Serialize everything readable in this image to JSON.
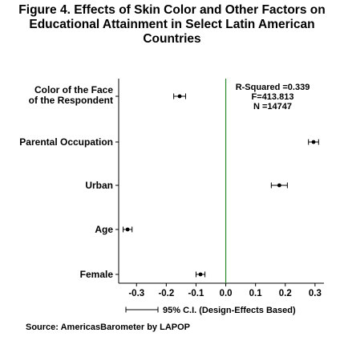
{
  "title_lines": [
    "Figure 4. Effects of Skin Color and Other Factors on",
    "Educational Attainment in Select Latin American",
    "Countries"
  ],
  "source": "Source: AmericasBarometer by LAPOP",
  "stats": [
    "R-Squared =0.339",
    "F=413.813",
    "N =14747"
  ],
  "ci_legend": "95% C.I. (Design-Effects Based)",
  "chart_data": {
    "type": "coefficient-plot",
    "orientation": "horizontal",
    "title": "Figure 4. Effects of Skin Color and Other Factors on Educational Attainment in Select Latin American Countries",
    "xlim": [
      -0.36,
      0.33
    ],
    "xticks": [
      -0.3,
      -0.2,
      -0.1,
      0.0,
      0.1,
      0.2,
      0.3
    ],
    "xtick_labels": [
      "-0.3",
      "-0.2",
      "-0.1",
      "0.0",
      "0.1",
      "0.2",
      "0.3"
    ],
    "reference_line": 0.0,
    "reference_line_color": "#2a8a2a",
    "point_color": "#000000",
    "items": [
      {
        "label_lines": [
          "Color of the Face",
          "of the Respondent"
        ],
        "estimate": -0.155,
        "ci": [
          -0.175,
          -0.135
        ]
      },
      {
        "label_lines": [
          "Parental Occupation"
        ],
        "estimate": 0.295,
        "ci": [
          0.278,
          0.312
        ]
      },
      {
        "label_lines": [
          "Urban"
        ],
        "estimate": 0.18,
        "ci": [
          0.153,
          0.207
        ]
      },
      {
        "label_lines": [
          "Age"
        ],
        "estimate": -0.33,
        "ci": [
          -0.345,
          -0.315
        ]
      },
      {
        "label_lines": [
          "Female"
        ],
        "estimate": -0.085,
        "ci": [
          -0.1,
          -0.07
        ]
      }
    ]
  }
}
